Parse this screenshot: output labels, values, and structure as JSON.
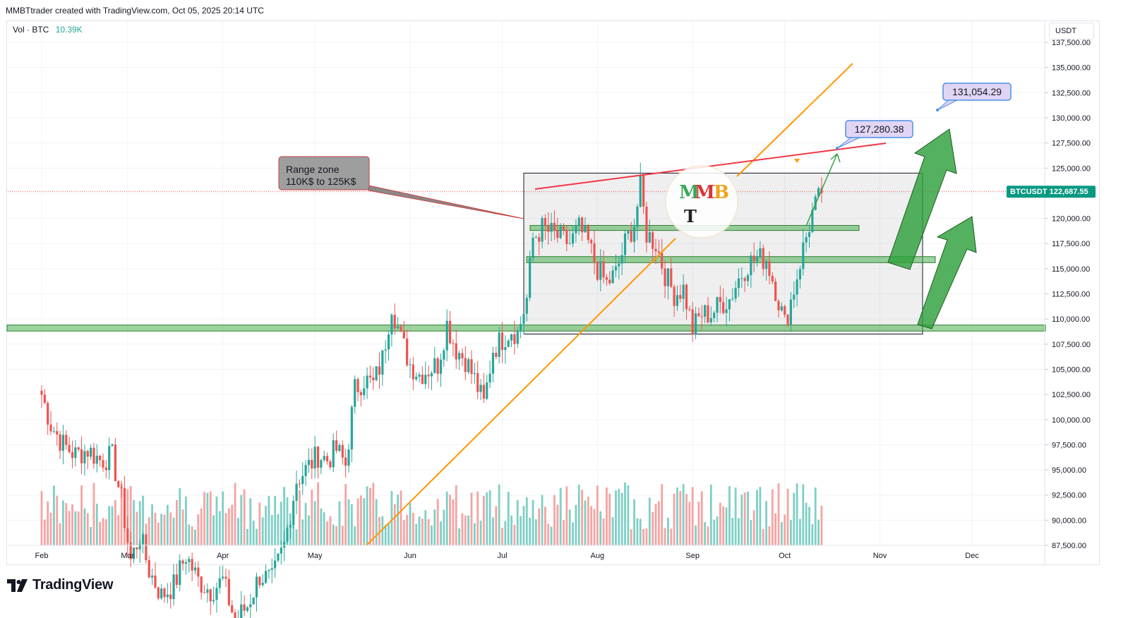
{
  "header": {
    "caption": "MMBTtrader created with TradingView.com, Oct 05, 2025 20:14 UTC"
  },
  "volume_legend": {
    "label": "Vol · BTC",
    "value": "10.39K"
  },
  "price_axis": {
    "currency": "USDT"
  },
  "last_price": {
    "symbol": "BTCUSDT",
    "value": "122,687.55"
  },
  "callouts": {
    "range_zone_line1": "Range zone",
    "range_zone_line2": "110K$ to 125K$",
    "target_1": "127,280.38",
    "target_2": "131,054.29"
  },
  "logo": {
    "text": "TradingView"
  },
  "colors": {
    "up": "#26a69a",
    "down": "#ef5350",
    "vol_up": "#7fcfc5",
    "vol_down": "#f5a4a2",
    "trendline_orange": "#ff9800",
    "resistance_red": "#f23645",
    "zone_green": "#4caf50",
    "callout_purple": "#e1d5f5",
    "callout_border": "#4a90e2"
  },
  "chart_data": {
    "type": "candlestick",
    "symbol": "BTCUSDT",
    "ylim": [
      87500,
      137500
    ],
    "y_ticks": [
      "137,500.00",
      "135,000.00",
      "132,500.00",
      "130,000.00",
      "127,500.00",
      "125,000.00",
      "122,500.00",
      "120,000.00",
      "117,500.00",
      "115,000.00",
      "112,500.00",
      "110,000.00",
      "107,500.00",
      "105,000.00",
      "102,500.00",
      "100,000.00",
      "97,500.00",
      "95,000.00",
      "92,500.00",
      "90,000.00",
      "87,500.00"
    ],
    "x_ticks": [
      {
        "label": "Feb",
        "day": 31
      },
      {
        "label": "Mar",
        "day": 59
      },
      {
        "label": "Apr",
        "day": 90
      },
      {
        "label": "May",
        "day": 120
      },
      {
        "label": "Jun",
        "day": 151
      },
      {
        "label": "Jul",
        "day": 181
      },
      {
        "label": "Aug",
        "day": 212
      },
      {
        "label": "Sep",
        "day": 243
      },
      {
        "label": "Oct",
        "day": 273
      },
      {
        "label": "Nov",
        "day": 304
      },
      {
        "label": "Dec",
        "day": 334
      }
    ],
    "x_range_days": [
      31,
      364
    ],
    "closes": [
      {
        "day": 31,
        "close": 102500
      },
      {
        "day": 34,
        "close": 99500
      },
      {
        "day": 38,
        "close": 97500
      },
      {
        "day": 42,
        "close": 96500
      },
      {
        "day": 46,
        "close": 97000
      },
      {
        "day": 50,
        "close": 96000
      },
      {
        "day": 54,
        "close": 96300
      },
      {
        "day": 57,
        "close": 92000
      },
      {
        "day": 60,
        "close": 86000
      },
      {
        "day": 63,
        "close": 88500
      },
      {
        "day": 66,
        "close": 85000
      },
      {
        "day": 70,
        "close": 82500
      },
      {
        "day": 74,
        "close": 83500
      },
      {
        "day": 78,
        "close": 86500
      },
      {
        "day": 82,
        "close": 84000
      },
      {
        "day": 86,
        "close": 83000
      },
      {
        "day": 90,
        "close": 84000
      },
      {
        "day": 94,
        "close": 80000
      },
      {
        "day": 98,
        "close": 81500
      },
      {
        "day": 102,
        "close": 84500
      },
      {
        "day": 106,
        "close": 84000
      },
      {
        "day": 110,
        "close": 87500
      },
      {
        "day": 114,
        "close": 94000
      },
      {
        "day": 117,
        "close": 95000
      },
      {
        "day": 121,
        "close": 96500
      },
      {
        "day": 124,
        "close": 96000
      },
      {
        "day": 127,
        "close": 97000
      },
      {
        "day": 130,
        "close": 95500
      },
      {
        "day": 133,
        "close": 103000
      },
      {
        "day": 136,
        "close": 104000
      },
      {
        "day": 139,
        "close": 103500
      },
      {
        "day": 142,
        "close": 106000
      },
      {
        "day": 145,
        "close": 111500
      },
      {
        "day": 148,
        "close": 108000
      },
      {
        "day": 151,
        "close": 105500
      },
      {
        "day": 154,
        "close": 104500
      },
      {
        "day": 157,
        "close": 105000
      },
      {
        "day": 160,
        "close": 105500
      },
      {
        "day": 163,
        "close": 109500
      },
      {
        "day": 166,
        "close": 107000
      },
      {
        "day": 169,
        "close": 106000
      },
      {
        "day": 172,
        "close": 104000
      },
      {
        "day": 175,
        "close": 101500
      },
      {
        "day": 178,
        "close": 107000
      },
      {
        "day": 181,
        "close": 108000
      },
      {
        "day": 184,
        "close": 109000
      },
      {
        "day": 186,
        "close": 108500
      },
      {
        "day": 189,
        "close": 112000
      },
      {
        "day": 191,
        "close": 118000
      },
      {
        "day": 194,
        "close": 119000
      },
      {
        "day": 197,
        "close": 118500
      },
      {
        "day": 200,
        "close": 118000
      },
      {
        "day": 203,
        "close": 117500
      },
      {
        "day": 206,
        "close": 119000
      },
      {
        "day": 209,
        "close": 117500
      },
      {
        "day": 212,
        "close": 115000
      },
      {
        "day": 215,
        "close": 113500
      },
      {
        "day": 218,
        "close": 114500
      },
      {
        "day": 221,
        "close": 117500
      },
      {
        "day": 224,
        "close": 119500
      },
      {
        "day": 226,
        "close": 123000
      },
      {
        "day": 228,
        "close": 118500
      },
      {
        "day": 231,
        "close": 117500
      },
      {
        "day": 234,
        "close": 114500
      },
      {
        "day": 237,
        "close": 112500
      },
      {
        "day": 240,
        "close": 113000
      },
      {
        "day": 243,
        "close": 109000
      },
      {
        "day": 246,
        "close": 110500
      },
      {
        "day": 249,
        "close": 110500
      },
      {
        "day": 252,
        "close": 111500
      },
      {
        "day": 255,
        "close": 112000
      },
      {
        "day": 258,
        "close": 114000
      },
      {
        "day": 261,
        "close": 115500
      },
      {
        "day": 264,
        "close": 116000
      },
      {
        "day": 267,
        "close": 116000
      },
      {
        "day": 270,
        "close": 113000
      },
      {
        "day": 273,
        "close": 109500
      },
      {
        "day": 276,
        "close": 113000
      },
      {
        "day": 279,
        "close": 117000
      },
      {
        "day": 282,
        "close": 120500
      },
      {
        "day": 285,
        "close": 122500
      }
    ],
    "range_zone": {
      "low": 108500,
      "high": 124500,
      "label": "Range zone 110K$ to 125K$"
    },
    "support_bands": [
      {
        "price_low": 108800,
        "price_high": 109400
      },
      {
        "price_low": 115600,
        "price_high": 116200
      },
      {
        "price_low": 118800,
        "price_high": 119300
      }
    ],
    "annotations": [
      {
        "label": "127,280.38",
        "price": 127280.38
      },
      {
        "label": "131,054.29",
        "price": 131054.29
      }
    ],
    "last_price": 122687.55,
    "volume_legend": "Vol · BTC 10.39K"
  }
}
